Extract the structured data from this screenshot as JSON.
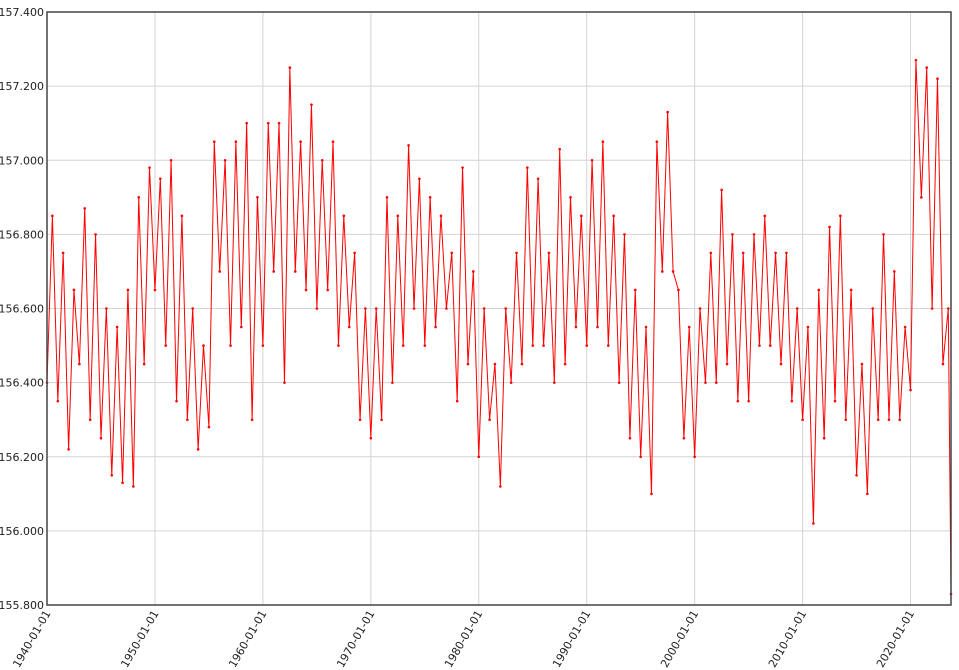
{
  "chart_data": {
    "type": "line",
    "color": "#ff0000",
    "grid": true,
    "x": [
      "1940-01-01",
      "1940-07-01",
      "1941-01-01",
      "1941-07-01",
      "1942-01-01",
      "1942-07-01",
      "1943-01-01",
      "1943-07-01",
      "1944-01-01",
      "1944-07-01",
      "1945-01-01",
      "1945-07-01",
      "1946-01-01",
      "1946-07-01",
      "1947-01-01",
      "1947-07-01",
      "1948-01-01",
      "1948-07-01",
      "1949-01-01",
      "1949-07-01",
      "1950-01-01",
      "1950-07-01",
      "1951-01-01",
      "1951-07-01",
      "1952-01-01",
      "1952-07-01",
      "1953-01-01",
      "1953-07-01",
      "1954-01-01",
      "1954-07-01",
      "1955-01-01",
      "1955-07-01",
      "1956-01-01",
      "1956-07-01",
      "1957-01-01",
      "1957-07-01",
      "1958-01-01",
      "1958-07-01",
      "1959-01-01",
      "1959-07-01",
      "1960-01-01",
      "1960-07-01",
      "1961-01-01",
      "1961-07-01",
      "1962-01-01",
      "1962-07-01",
      "1963-01-01",
      "1963-07-01",
      "1964-01-01",
      "1964-07-01",
      "1965-01-01",
      "1965-07-01",
      "1966-01-01",
      "1966-07-01",
      "1967-01-01",
      "1967-07-01",
      "1968-01-01",
      "1968-07-01",
      "1969-01-01",
      "1969-07-01",
      "1970-01-01",
      "1970-07-01",
      "1971-01-01",
      "1971-07-01",
      "1972-01-01",
      "1972-07-01",
      "1973-01-01",
      "1973-07-01",
      "1974-01-01",
      "1974-07-01",
      "1975-01-01",
      "1975-07-01",
      "1976-01-01",
      "1976-07-01",
      "1977-01-01",
      "1977-07-01",
      "1978-01-01",
      "1978-07-01",
      "1979-01-01",
      "1979-07-01",
      "1980-01-01",
      "1980-07-01",
      "1981-01-01",
      "1981-07-01",
      "1982-01-01",
      "1982-07-01",
      "1983-01-01",
      "1983-07-01",
      "1984-01-01",
      "1984-07-01",
      "1985-01-01",
      "1985-07-01",
      "1986-01-01",
      "1986-07-01",
      "1987-01-01",
      "1987-07-01",
      "1988-01-01",
      "1988-07-01",
      "1989-01-01",
      "1989-07-01",
      "1990-01-01",
      "1990-07-01",
      "1991-01-01",
      "1991-07-01",
      "1992-01-01",
      "1992-07-01",
      "1993-01-01",
      "1993-07-01",
      "1994-01-01",
      "1994-07-01",
      "1995-01-01",
      "1995-07-01",
      "1996-01-01",
      "1996-07-01",
      "1997-01-01",
      "1997-07-01",
      "1998-01-01",
      "1998-07-01",
      "1999-01-01",
      "1999-07-01",
      "2000-01-01",
      "2000-07-01",
      "2001-01-01",
      "2001-07-01",
      "2002-01-01",
      "2002-07-01",
      "2003-01-01",
      "2003-07-01",
      "2004-01-01",
      "2004-07-01",
      "2005-01-01",
      "2005-07-01",
      "2006-01-01",
      "2006-07-01",
      "2007-01-01",
      "2007-07-01",
      "2008-01-01",
      "2008-07-01",
      "2009-01-01",
      "2009-07-01",
      "2010-01-01",
      "2010-07-01",
      "2011-01-01",
      "2011-07-01",
      "2012-01-01",
      "2012-07-01",
      "2013-01-01",
      "2013-07-01",
      "2014-01-01",
      "2014-07-01",
      "2015-01-01",
      "2015-07-01",
      "2016-01-01",
      "2016-07-01",
      "2017-01-01",
      "2017-07-01",
      "2018-01-01",
      "2018-07-01",
      "2019-01-01",
      "2019-07-01",
      "2020-01-01",
      "2020-07-01",
      "2021-01-01",
      "2021-07-01",
      "2022-01-01",
      "2022-07-01",
      "2023-01-01",
      "2023-07-01",
      "2023-10-01"
    ],
    "values": [
      156.4,
      156.85,
      156.35,
      156.75,
      156.22,
      156.65,
      156.45,
      156.87,
      156.3,
      156.8,
      156.25,
      156.6,
      156.15,
      156.55,
      156.13,
      156.65,
      156.12,
      156.9,
      156.45,
      156.98,
      156.65,
      156.95,
      156.5,
      157.0,
      156.35,
      156.85,
      156.3,
      156.6,
      156.22,
      156.5,
      156.28,
      157.05,
      156.7,
      157.0,
      156.5,
      157.05,
      156.55,
      157.1,
      156.3,
      156.9,
      156.5,
      157.1,
      156.7,
      157.1,
      156.4,
      157.25,
      156.7,
      157.05,
      156.65,
      157.15,
      156.6,
      157.0,
      156.65,
      157.05,
      156.5,
      156.85,
      156.55,
      156.75,
      156.3,
      156.6,
      156.25,
      156.6,
      156.3,
      156.9,
      156.4,
      156.85,
      156.5,
      157.04,
      156.6,
      156.95,
      156.5,
      156.9,
      156.55,
      156.85,
      156.6,
      156.75,
      156.35,
      156.98,
      156.45,
      156.7,
      156.2,
      156.6,
      156.3,
      156.45,
      156.12,
      156.6,
      156.4,
      156.75,
      156.45,
      156.98,
      156.5,
      156.95,
      156.5,
      156.75,
      156.4,
      157.03,
      156.45,
      156.9,
      156.55,
      156.85,
      156.5,
      157.0,
      156.55,
      157.05,
      156.5,
      156.85,
      156.4,
      156.8,
      156.25,
      156.65,
      156.2,
      156.55,
      156.1,
      157.05,
      156.7,
      157.13,
      156.7,
      156.65,
      156.25,
      156.55,
      156.2,
      156.6,
      156.4,
      156.75,
      156.4,
      156.92,
      156.45,
      156.8,
      156.35,
      156.75,
      156.35,
      156.8,
      156.5,
      156.85,
      156.5,
      156.75,
      156.45,
      156.75,
      156.35,
      156.6,
      156.3,
      156.55,
      156.02,
      156.65,
      156.25,
      156.82,
      156.35,
      156.85,
      156.3,
      156.65,
      156.15,
      156.45,
      156.1,
      156.6,
      156.3,
      156.8,
      156.3,
      156.7,
      156.3,
      156.55,
      156.38,
      157.27,
      156.9,
      157.25,
      156.6,
      157.22,
      156.45,
      156.6,
      155.83
    ],
    "xlim": [
      "1940-01-01",
      "2023-10-01"
    ],
    "xticks": [
      "1940-01-01",
      "1950-01-01",
      "1960-01-01",
      "1970-01-01",
      "1980-01-01",
      "1990-01-01",
      "2000-01-01",
      "2010-01-01",
      "2020-01-01"
    ],
    "ylim": [
      155.8,
      157.4
    ],
    "yticks": [
      {
        "value": 155.8,
        "label": "155.800"
      },
      {
        "value": 156,
        "label": "156.000"
      },
      {
        "value": 156.2,
        "label": "156.200"
      },
      {
        "value": 156.4,
        "label": "156.400"
      },
      {
        "value": 156.6,
        "label": "156.600"
      },
      {
        "value": 156.8,
        "label": "156.800"
      },
      {
        "value": 157,
        "label": "157.000"
      },
      {
        "value": 157.2,
        "label": "157.200"
      },
      {
        "value": 157.4,
        "label": "157.400"
      }
    ]
  }
}
